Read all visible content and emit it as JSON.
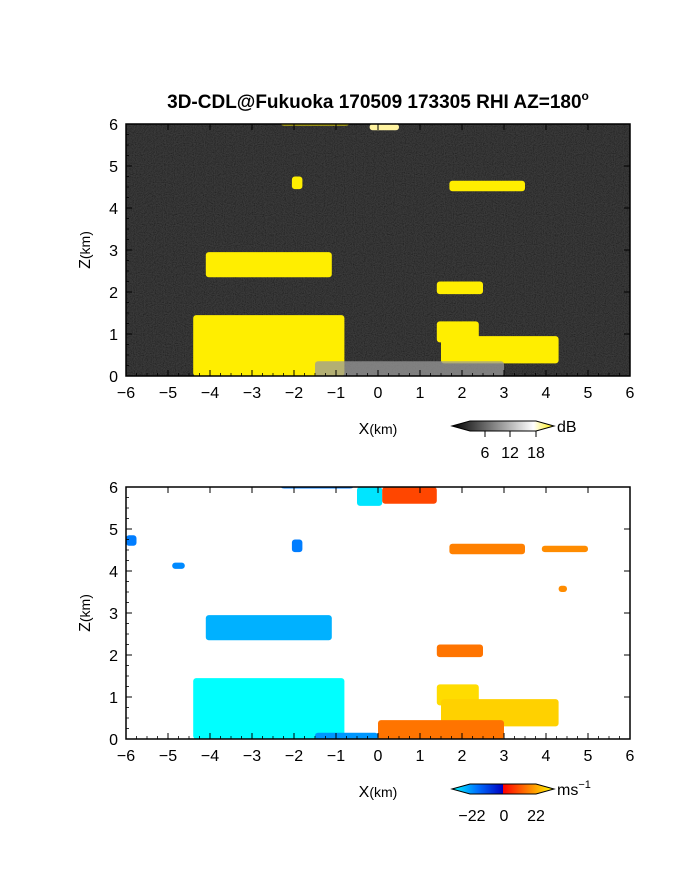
{
  "title": "3D-CDL@Fukuoka 170509 173305 RHI AZ=180",
  "title_suffix": "o",
  "chart_data": [
    {
      "type": "heatmap",
      "name": "reflectivity",
      "xlabel_main": "X",
      "xlabel_unit": "(km)",
      "ylabel_main": "Z",
      "ylabel_unit": "(km)",
      "xlim": [
        -6,
        6
      ],
      "ylim": [
        0,
        6
      ],
      "xticks": [
        -6,
        -5,
        -4,
        -3,
        -2,
        -1,
        0,
        1,
        2,
        3,
        4,
        5,
        6
      ],
      "yticks": [
        0,
        1,
        2,
        3,
        4,
        5,
        6
      ],
      "background": "noise-gray",
      "highlight_color": "#ffee00",
      "colorbar": {
        "ticks": [
          "6",
          "12",
          "18"
        ],
        "unit": "dB"
      },
      "features": [
        {
          "id": "top-band",
          "x": [
            -2.3,
            -0.7
          ],
          "z": [
            5.98,
            6.0
          ],
          "level": 1
        },
        {
          "id": "top-bright",
          "x": [
            -0.2,
            0.5
          ],
          "z": [
            5.85,
            6.0
          ],
          "level": 1.4
        },
        {
          "id": "blob-near-m2",
          "x": [
            -2.05,
            -1.8
          ],
          "z": [
            4.45,
            4.75
          ],
          "level": 1
        },
        {
          "id": "band-4.5-right",
          "x": [
            1.7,
            3.5
          ],
          "z": [
            4.4,
            4.65
          ],
          "level": 1
        },
        {
          "id": "layer-2.8",
          "x": [
            -4.1,
            -1.1
          ],
          "z": [
            2.35,
            2.95
          ],
          "level": 1
        },
        {
          "id": "patch-2.1",
          "x": [
            1.4,
            2.5
          ],
          "z": [
            1.95,
            2.25
          ],
          "level": 1
        },
        {
          "id": "slant-left",
          "x": [
            -4.4,
            -0.8
          ],
          "z": [
            0.0,
            1.45
          ],
          "level": 1
        },
        {
          "id": "patch-right-1",
          "x": [
            1.4,
            2.4
          ],
          "z": [
            0.8,
            1.3
          ],
          "level": 1
        },
        {
          "id": "layer-right-low",
          "x": [
            1.5,
            4.3
          ],
          "z": [
            0.3,
            0.95
          ],
          "level": 1
        },
        {
          "id": "surface-echo",
          "x": [
            -1.5,
            3.0
          ],
          "z": [
            0.0,
            0.35
          ],
          "level": 0.4
        }
      ]
    },
    {
      "type": "heatmap",
      "name": "radial-velocity",
      "xlabel_main": "X",
      "xlabel_unit": "(km)",
      "ylabel_main": "Z",
      "ylabel_unit": "(km)",
      "xlim": [
        -6,
        6
      ],
      "ylim": [
        0,
        6
      ],
      "xticks": [
        -6,
        -5,
        -4,
        -3,
        -2,
        -1,
        0,
        1,
        2,
        3,
        4,
        5,
        6
      ],
      "yticks": [
        0,
        1,
        2,
        3,
        4,
        5,
        6
      ],
      "colorbar": {
        "ticks": [
          "−22",
          "0",
          "22"
        ],
        "unit": "ms",
        "unit_exp": "−1"
      },
      "vrange": [
        -22,
        22
      ],
      "features": [
        {
          "id": "top-left",
          "x": [
            -2.3,
            -0.6
          ],
          "z": [
            5.97,
            6.0
          ],
          "v": -12
        },
        {
          "id": "top-center-neg",
          "x": [
            -0.5,
            0.1
          ],
          "z": [
            5.55,
            6.0
          ],
          "v": -20
        },
        {
          "id": "top-center-pos",
          "x": [
            0.1,
            1.4
          ],
          "z": [
            5.6,
            6.0
          ],
          "v": 6
        },
        {
          "id": "edge-4.7",
          "x": [
            -6.0,
            -5.75
          ],
          "z": [
            4.6,
            4.85
          ],
          "v": -12
        },
        {
          "id": "speck-4.1",
          "x": [
            -4.9,
            -4.6
          ],
          "z": [
            4.05,
            4.2
          ],
          "v": -13
        },
        {
          "id": "blob-near-m2",
          "x": [
            -2.05,
            -1.8
          ],
          "z": [
            4.45,
            4.75
          ],
          "v": -12
        },
        {
          "id": "band-4.5-right",
          "x": [
            1.7,
            3.5
          ],
          "z": [
            4.4,
            4.65
          ],
          "v": 11
        },
        {
          "id": "band-4.5-far",
          "x": [
            3.9,
            5.0
          ],
          "z": [
            4.45,
            4.6
          ],
          "v": 12
        },
        {
          "id": "speck-3.6",
          "x": [
            4.3,
            4.5
          ],
          "z": [
            3.5,
            3.65
          ],
          "v": 12
        },
        {
          "id": "layer-2.8",
          "x": [
            -4.1,
            -1.1
          ],
          "z": [
            2.35,
            2.95
          ],
          "v": -16
        },
        {
          "id": "patch-2.1",
          "x": [
            1.4,
            2.5
          ],
          "z": [
            1.95,
            2.25
          ],
          "v": 10
        },
        {
          "id": "slant-left",
          "x": [
            -4.4,
            -0.8
          ],
          "z": [
            0.0,
            1.45
          ],
          "v": -22
        },
        {
          "id": "patch-right-1",
          "x": [
            1.4,
            2.4
          ],
          "z": [
            0.8,
            1.3
          ],
          "v": 19
        },
        {
          "id": "layer-right-low",
          "x": [
            1.5,
            4.3
          ],
          "z": [
            0.3,
            0.95
          ],
          "v": 18
        },
        {
          "id": "surface-pos",
          "x": [
            0.0,
            3.0
          ],
          "z": [
            0.0,
            0.45
          ],
          "v": 10
        },
        {
          "id": "surface-neg",
          "x": [
            -1.5,
            0.0
          ],
          "z": [
            0.0,
            0.15
          ],
          "v": -14
        }
      ]
    }
  ]
}
